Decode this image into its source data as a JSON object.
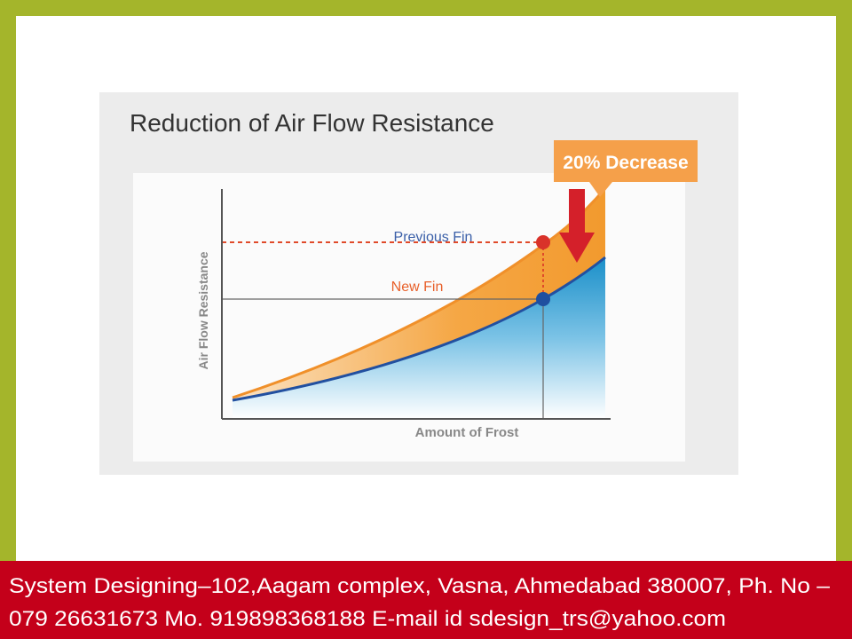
{
  "slide": {
    "title": "Reduction of Air Flow Resistance",
    "callout": "20% Decrease",
    "y_axis_label": "Air Flow Resistance",
    "x_axis_label": "Amount of Frost",
    "curves": [
      {
        "label": "Previous Fin"
      },
      {
        "label": "New Fin"
      }
    ],
    "footer": [
      "System Designing–102,Aagam complex, Vasna, Ahmedabad 380007, Ph. No –",
      "079 26631673 Mo. 919898368188 E-mail id sdesign_trs@yahoo.com"
    ]
  }
}
